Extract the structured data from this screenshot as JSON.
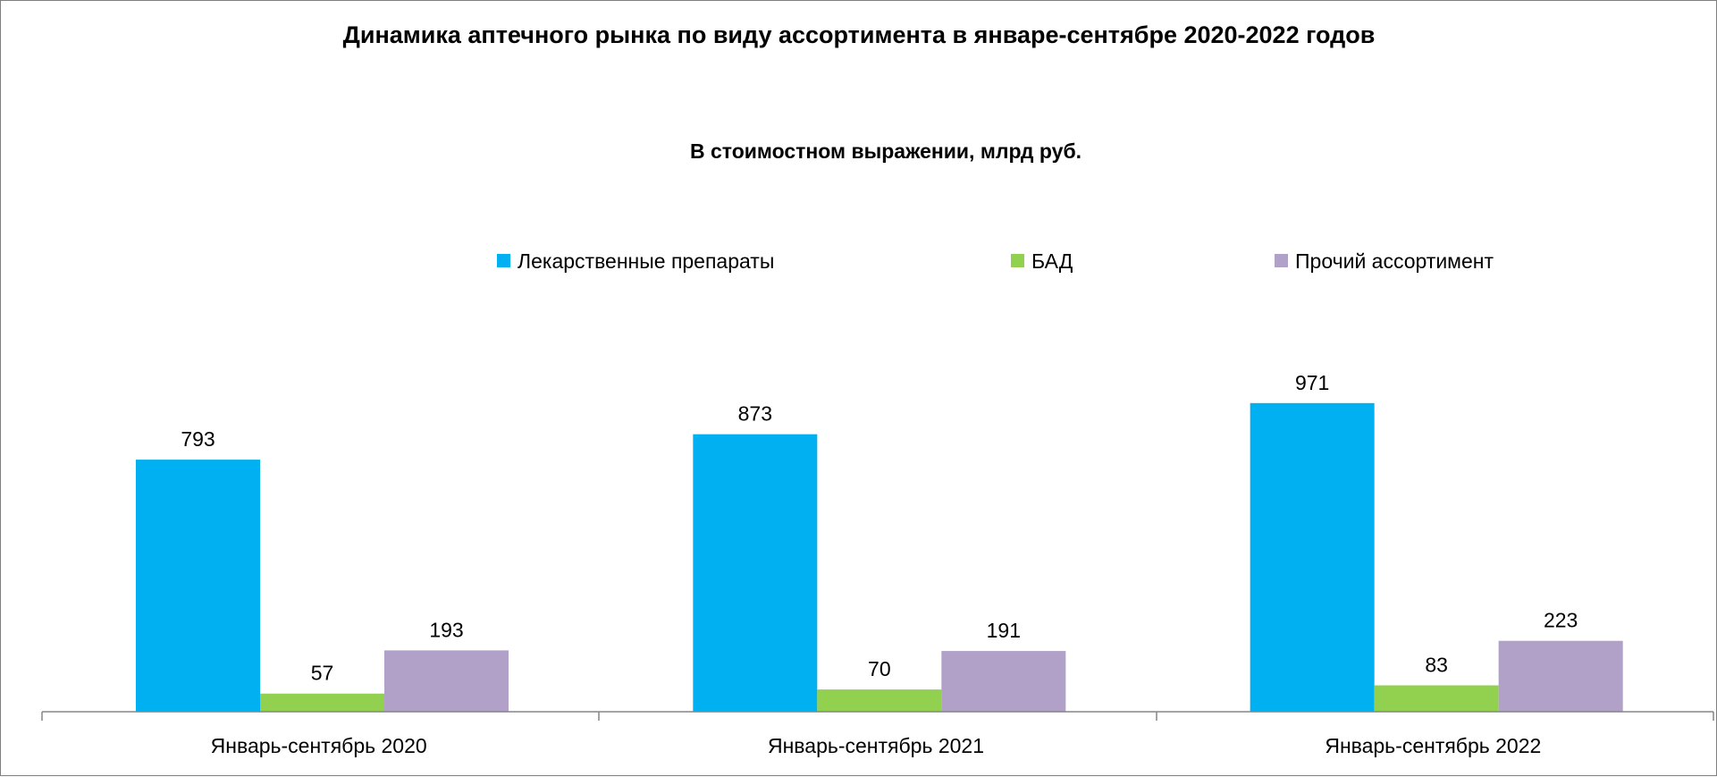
{
  "chart_data": {
    "type": "bar",
    "title": "Динамика аптечного рынка по виду ассортимента в январе-сентябре 2020-2022 годов",
    "subtitle": "В стоимостном выражении, млрд руб.",
    "categories": [
      "Январь-сентябрь 2020",
      "Январь-сентябрь 2021",
      "Январь-сентябрь 2022"
    ],
    "series": [
      {
        "name": "Лекарственные препараты",
        "color": "#00B0F0",
        "values": [
          793,
          873,
          971
        ]
      },
      {
        "name": "БАД",
        "color": "#92D050",
        "values": [
          57,
          70,
          83
        ]
      },
      {
        "name": "Прочий ассортимент",
        "color": "#B1A0C7",
        "values": [
          193,
          191,
          223
        ]
      }
    ],
    "ylim": [
      0,
      1100
    ],
    "grid": false,
    "legend_position": "top",
    "data_labels": true
  }
}
